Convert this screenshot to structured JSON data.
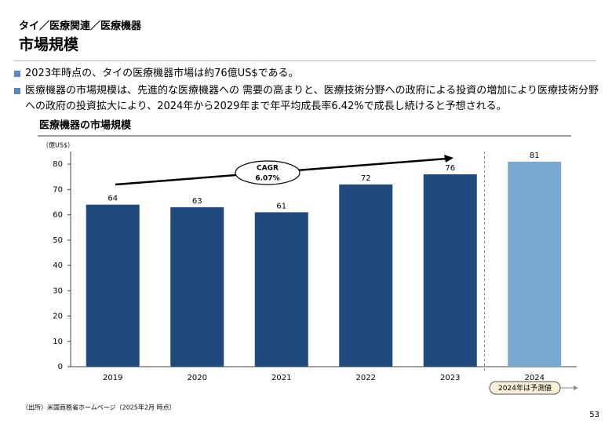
{
  "header": {
    "breadcrumb": "タイ／医療関連／医療機器",
    "title": "市場規模"
  },
  "bullets": [
    "2023年時点の、タイの医療機器市場は約76億US$である。",
    "医療機器の市場規模は、先進的な医療機器への 需要の高まりと、医療技術分野への政府による投資の増加により医療技術分野への政府の投資拡大により、2024年から2029年まで年平均成長率6.42%で成長し続けると予想される。"
  ],
  "chart_data": {
    "type": "bar",
    "title": "医療機器の市場規模",
    "y_label": "（億US$）",
    "categories": [
      "2019",
      "2020",
      "2021",
      "2022",
      "2023",
      "2024"
    ],
    "values": [
      64,
      63,
      61,
      72,
      76,
      81
    ],
    "colors": [
      "#1f4a7e",
      "#1f4a7e",
      "#1f4a7e",
      "#1f4a7e",
      "#1f4a7e",
      "#7aa9cf"
    ],
    "ylim": [
      0,
      85
    ],
    "yticks": [
      0,
      10,
      20,
      30,
      40,
      50,
      60,
      70,
      80
    ],
    "annotations": [
      "CAGR",
      "6.07%",
      "2024年は予測値"
    ]
  },
  "footer": {
    "source": "（出所）米国商務省ホームページ（2025年2月 時点）",
    "page": "53"
  }
}
